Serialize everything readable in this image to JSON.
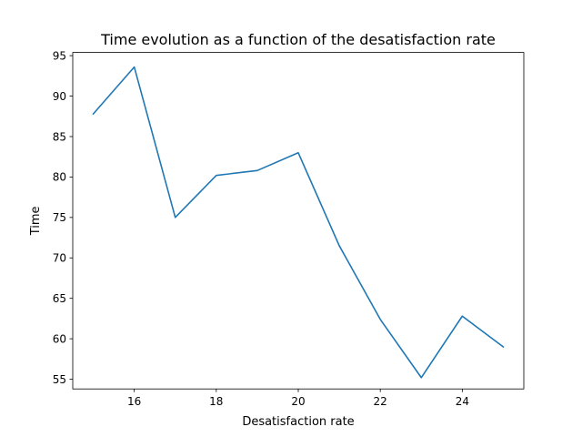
{
  "chart_data": {
    "type": "line",
    "title": "Time evolution as a function of the desatisfaction rate",
    "xlabel": "Desatisfaction rate",
    "ylabel": "Time",
    "xlim": [
      14.5,
      25.5
    ],
    "ylim": [
      53.8,
      95.4
    ],
    "xticks": [
      16,
      18,
      20,
      22,
      24
    ],
    "yticks": [
      55,
      60,
      65,
      70,
      75,
      80,
      85,
      90,
      95
    ],
    "grid": false,
    "series": [
      {
        "color": "#1f77b4",
        "x": [
          15,
          16,
          17,
          18,
          19,
          20,
          21,
          22,
          23,
          24,
          25
        ],
        "y": [
          87.8,
          93.6,
          75.0,
          80.2,
          80.8,
          83.0,
          71.5,
          62.4,
          55.2,
          62.8,
          59.0
        ]
      }
    ]
  }
}
